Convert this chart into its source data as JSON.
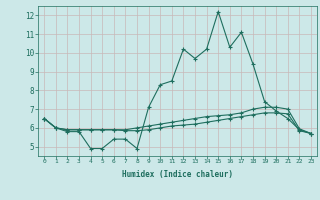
{
  "xlabel": "Humidex (Indice chaleur)",
  "background_color": "#cce8e8",
  "plot_bg_color": "#cce8e8",
  "grid_color": "#c8b8b8",
  "line_color": "#1e6e5e",
  "xlim": [
    -0.5,
    23.5
  ],
  "ylim": [
    4.5,
    12.5
  ],
  "yticks": [
    5,
    6,
    7,
    8,
    9,
    10,
    11,
    12
  ],
  "xticks": [
    0,
    1,
    2,
    3,
    4,
    5,
    6,
    7,
    8,
    9,
    10,
    11,
    12,
    13,
    14,
    15,
    16,
    17,
    18,
    19,
    20,
    21,
    22,
    23
  ],
  "line1_x": [
    0,
    1,
    2,
    3,
    4,
    5,
    6,
    7,
    8,
    9,
    10,
    11,
    12,
    13,
    14,
    15,
    16,
    17,
    18,
    19,
    20,
    21,
    22,
    23
  ],
  "line1_y": [
    6.5,
    6.0,
    5.8,
    5.8,
    4.9,
    4.9,
    5.4,
    5.4,
    4.9,
    7.1,
    8.3,
    8.5,
    10.2,
    9.7,
    10.2,
    12.2,
    10.3,
    11.1,
    9.4,
    7.4,
    6.9,
    6.5,
    5.9,
    5.7
  ],
  "line2_x": [
    0,
    1,
    2,
    3,
    4,
    5,
    6,
    7,
    8,
    9,
    10,
    11,
    12,
    13,
    14,
    15,
    16,
    17,
    18,
    19,
    20,
    21,
    22,
    23
  ],
  "line2_y": [
    6.5,
    6.0,
    5.9,
    5.9,
    5.9,
    5.9,
    5.9,
    5.9,
    6.0,
    6.1,
    6.2,
    6.3,
    6.4,
    6.5,
    6.6,
    6.65,
    6.7,
    6.8,
    7.0,
    7.1,
    7.1,
    7.0,
    5.95,
    5.7
  ],
  "line3_x": [
    0,
    1,
    2,
    3,
    4,
    5,
    6,
    7,
    8,
    9,
    10,
    11,
    12,
    13,
    14,
    15,
    16,
    17,
    18,
    19,
    20,
    21,
    22,
    23
  ],
  "line3_y": [
    6.5,
    6.0,
    5.9,
    5.9,
    5.9,
    5.9,
    5.9,
    5.85,
    5.85,
    5.9,
    6.0,
    6.1,
    6.15,
    6.2,
    6.3,
    6.4,
    6.5,
    6.6,
    6.7,
    6.8,
    6.8,
    6.75,
    5.85,
    5.7
  ]
}
